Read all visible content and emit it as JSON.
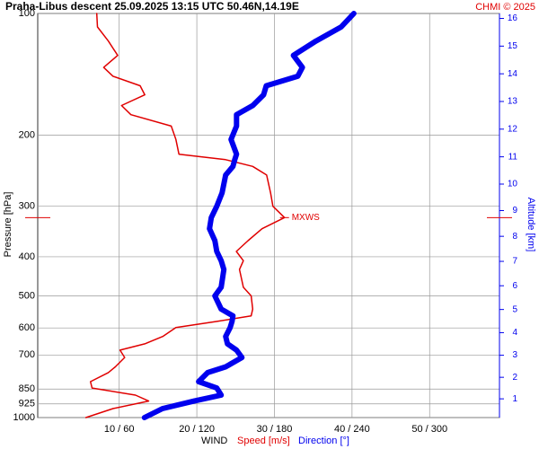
{
  "chart_data": {
    "type": "line",
    "title": "Praha-Libus   descent   25.09.2025 13:15 UTC   50.46N,14.19E",
    "credit": "CHMI © 2025",
    "y_label": "Pressure [hPa]",
    "y2_label": "Altitude [km]",
    "x_label": "WIND",
    "speed_label": "Speed [m/s]",
    "direction_label": "Direction [°]",
    "y_scale": "log",
    "ylim": [
      1000,
      100
    ],
    "yticks": [
      100,
      200,
      300,
      400,
      500,
      600,
      700,
      850,
      925,
      1000
    ],
    "y2ticks": [
      1,
      2,
      3,
      4,
      5,
      6,
      7,
      8,
      9,
      10,
      11,
      12,
      13,
      14,
      15,
      16
    ],
    "xlim": [
      -0.5,
      59
    ],
    "x2lim": [
      -3,
      354
    ],
    "xticks": [
      {
        "value": 10,
        "label": "10 / 60"
      },
      {
        "value": 20,
        "label": "20 / 120"
      },
      {
        "value": 30,
        "label": "30 / 180"
      },
      {
        "value": 40,
        "label": "40 / 240"
      },
      {
        "value": 50,
        "label": "50 / 300"
      }
    ],
    "grid": true,
    "pressure": [
      1000,
      950,
      910,
      880,
      845,
      815,
      774,
      749,
      710,
      681,
      657,
      630,
      599,
      578,
      560,
      539,
      500,
      476,
      430,
      409,
      388,
      365,
      341,
      320,
      300,
      278,
      251,
      239,
      230,
      223,
      205,
      190,
      178,
      169,
      159,
      151,
      143,
      136,
      127,
      117,
      108,
      100
    ],
    "series": [
      {
        "name": "Speed",
        "color": "#e00000",
        "values": [
          5.7,
          9.2,
          13.8,
          12.1,
          6.5,
          6.3,
          8.6,
          9.5,
          10.7,
          10.1,
          13.3,
          15.6,
          17.3,
          22.6,
          27.0,
          27.2,
          27.0,
          26.0,
          25.5,
          26.0,
          25.1,
          26.6,
          28.4,
          31.3,
          29.8,
          29.5,
          29.0,
          27.2,
          23.7,
          17.7,
          17.3,
          16.7,
          11.5,
          10.3,
          13.3,
          12.7,
          9.2,
          8.0,
          9.8,
          8.6,
          7.2,
          7.1
        ]
      },
      {
        "name": "Direction",
        "color": "#0000ee",
        "axis": "x2",
        "values": [
          79.5,
          93.5,
          117.9,
          138.8,
          135.4,
          121.4,
          128.4,
          142.3,
          154.9,
          150.7,
          143.7,
          142.3,
          145.8,
          147.2,
          147.9,
          138.8,
          134,
          138.8,
          140.9,
          138.8,
          135.4,
          134,
          129.8,
          131.2,
          135.4,
          139.5,
          142.3,
          147.9,
          149.3,
          150.7,
          146.5,
          150.7,
          150.7,
          163.3,
          171.6,
          173.7,
          198.1,
          201.6,
          194.7,
          212.1,
          231.6,
          241.4
        ]
      }
    ],
    "annotation": {
      "text": "MXWS",
      "pressure": 320,
      "speed": 31.3
    }
  }
}
